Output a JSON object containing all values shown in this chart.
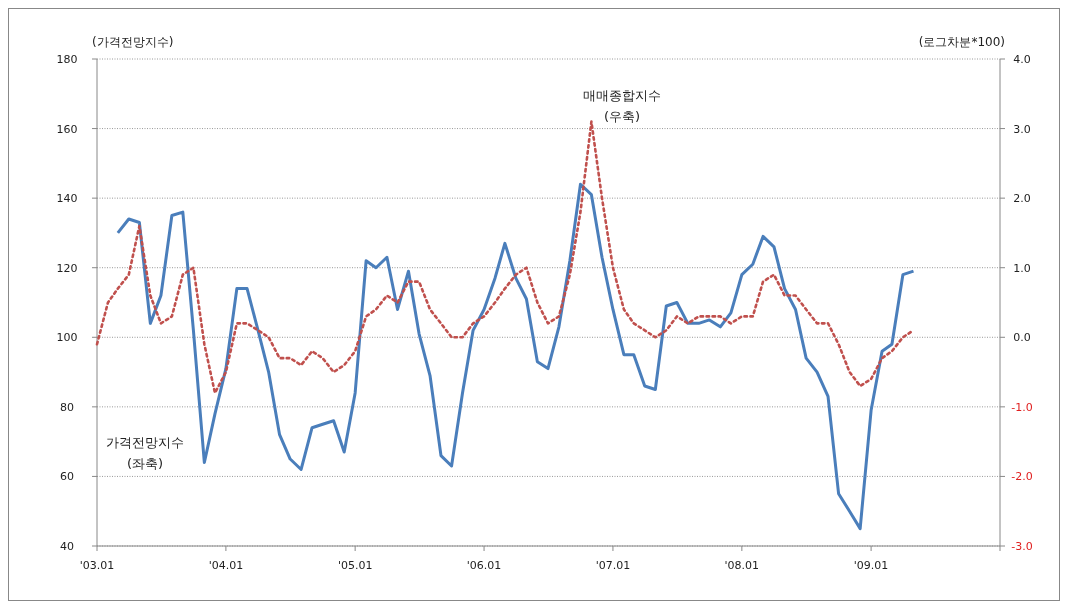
{
  "chart_data": {
    "type": "line",
    "ylabel": "(가격전망지수)",
    "y2label": "(로그차분*100)",
    "xlim": [
      "2003-01",
      "2010-01"
    ],
    "xticks": [
      {
        "value": "2003-01",
        "label": "'03.01"
      },
      {
        "value": "2004-01",
        "label": "'04.01"
      },
      {
        "value": "2005-01",
        "label": "'05.01"
      },
      {
        "value": "2006-01",
        "label": "'06.01"
      },
      {
        "value": "2007-01",
        "label": "'07.01"
      },
      {
        "value": "2008-01",
        "label": "'08.01"
      },
      {
        "value": "2009-01",
        "label": "'09.01"
      },
      {
        "value": "2010-01",
        "label": null
      }
    ],
    "ylim": [
      40,
      180
    ],
    "yticks": [
      40,
      60,
      80,
      100,
      120,
      140,
      160,
      180
    ],
    "y2lim": [
      -3,
      4
    ],
    "y2ticks": [
      {
        "value": 4,
        "label": "4.0"
      },
      {
        "value": 3,
        "label": "3.0"
      },
      {
        "value": 2,
        "label": "2.0"
      },
      {
        "value": 1,
        "label": "1.0"
      },
      {
        "value": 0,
        "label": "0.0"
      },
      {
        "value": -1,
        "label": "-1.0"
      },
      {
        "value": -2,
        "label": "-2.0"
      },
      {
        "value": -3,
        "label": "-3.0"
      }
    ],
    "grid": "y",
    "marker": "none",
    "series": [
      {
        "name": "가격전망지수 (좌축)",
        "color": "#4a7ebb",
        "line_style": "solid",
        "x": [
          "2003-03",
          "2003-04",
          "2003-05",
          "2003-06",
          "2003-07",
          "2003-08",
          "2003-09",
          "2003-10",
          "2003-11",
          "2003-12",
          "2004-01",
          "2004-02",
          "2004-03",
          "2004-04",
          "2004-05",
          "2004-06",
          "2004-07",
          "2004-08",
          "2004-09",
          "2004-10",
          "2004-11",
          "2004-12",
          "2005-01",
          "2005-02",
          "2005-03",
          "2005-04",
          "2005-05",
          "2005-06",
          "2005-07",
          "2005-08",
          "2005-09",
          "2005-10",
          "2005-11",
          "2005-12",
          "2006-01",
          "2006-02",
          "2006-03",
          "2006-04",
          "2006-05",
          "2006-06",
          "2006-07",
          "2006-08",
          "2006-09",
          "2006-10",
          "2006-11",
          "2006-12",
          "2007-01",
          "2007-02",
          "2007-03",
          "2007-04",
          "2007-05",
          "2007-06",
          "2007-07",
          "2007-08",
          "2007-09",
          "2007-10",
          "2007-11",
          "2007-12",
          "2008-01",
          "2008-02",
          "2008-03",
          "2008-04",
          "2008-05",
          "2008-06",
          "2008-07",
          "2008-08",
          "2008-09",
          "2008-10",
          "2008-11",
          "2008-12",
          "2009-01",
          "2009-02",
          "2009-03",
          "2009-04",
          "2009-05"
        ],
        "values": [
          130,
          134,
          133,
          104,
          112,
          135,
          136,
          102,
          64,
          78,
          91,
          114,
          114,
          102,
          90,
          72,
          65,
          62,
          74,
          75,
          76,
          67,
          84,
          122,
          120,
          123,
          108,
          119,
          101,
          89,
          66,
          63,
          84,
          102,
          108,
          117,
          127,
          117,
          111,
          93,
          91,
          103,
          122,
          144,
          141,
          123,
          108,
          95,
          95,
          86,
          85,
          109,
          110,
          104,
          104,
          105,
          103,
          107,
          118,
          121,
          129,
          126,
          114,
          108,
          94,
          90,
          83,
          55,
          50,
          45,
          79,
          96,
          98,
          118,
          119
        ]
      },
      {
        "name": "매매종합지수 (우축)",
        "color": "#c0504d",
        "line_style": "dotted",
        "axis": "y2",
        "x": [
          "2003-01",
          "2003-02",
          "2003-03",
          "2003-04",
          "2003-05",
          "2003-06",
          "2003-07",
          "2003-08",
          "2003-09",
          "2003-10",
          "2003-11",
          "2003-12",
          "2004-01",
          "2004-02",
          "2004-03",
          "2004-04",
          "2004-05",
          "2004-06",
          "2004-07",
          "2004-08",
          "2004-09",
          "2004-10",
          "2004-11",
          "2004-12",
          "2005-01",
          "2005-02",
          "2005-03",
          "2005-04",
          "2005-05",
          "2005-06",
          "2005-07",
          "2005-08",
          "2005-09",
          "2005-10",
          "2005-11",
          "2005-12",
          "2006-01",
          "2006-02",
          "2006-03",
          "2006-04",
          "2006-05",
          "2006-06",
          "2006-07",
          "2006-08",
          "2006-09",
          "2006-10",
          "2006-11",
          "2006-12",
          "2007-01",
          "2007-02",
          "2007-03",
          "2007-04",
          "2007-05",
          "2007-06",
          "2007-07",
          "2007-08",
          "2007-09",
          "2007-10",
          "2007-11",
          "2007-12",
          "2008-01",
          "2008-02",
          "2008-03",
          "2008-04",
          "2008-05",
          "2008-06",
          "2008-07",
          "2008-08",
          "2008-09",
          "2008-10",
          "2008-11",
          "2008-12",
          "2009-01",
          "2009-02",
          "2009-03",
          "2009-04",
          "2009-05"
        ],
        "values": [
          -0.1,
          0.5,
          0.7,
          0.9,
          1.6,
          0.6,
          0.2,
          0.3,
          0.9,
          1.0,
          -0.1,
          -0.8,
          -0.5,
          0.2,
          0.2,
          0.1,
          0.0,
          -0.3,
          -0.3,
          -0.4,
          -0.2,
          -0.3,
          -0.5,
          -0.4,
          -0.2,
          0.3,
          0.4,
          0.6,
          0.5,
          0.8,
          0.8,
          0.4,
          0.2,
          0.0,
          0.0,
          0.2,
          0.3,
          0.5,
          0.7,
          0.9,
          1.0,
          0.5,
          0.2,
          0.3,
          0.9,
          1.8,
          3.1,
          2.0,
          1.0,
          0.4,
          0.2,
          0.1,
          0.0,
          0.1,
          0.3,
          0.2,
          0.3,
          0.3,
          0.3,
          0.2,
          0.3,
          0.3,
          0.8,
          0.9,
          0.6,
          0.6,
          0.4,
          0.2,
          0.2,
          -0.1,
          -0.5,
          -0.7,
          -0.6,
          -0.3,
          -0.2,
          0.0,
          0.1
        ]
      }
    ]
  }
}
